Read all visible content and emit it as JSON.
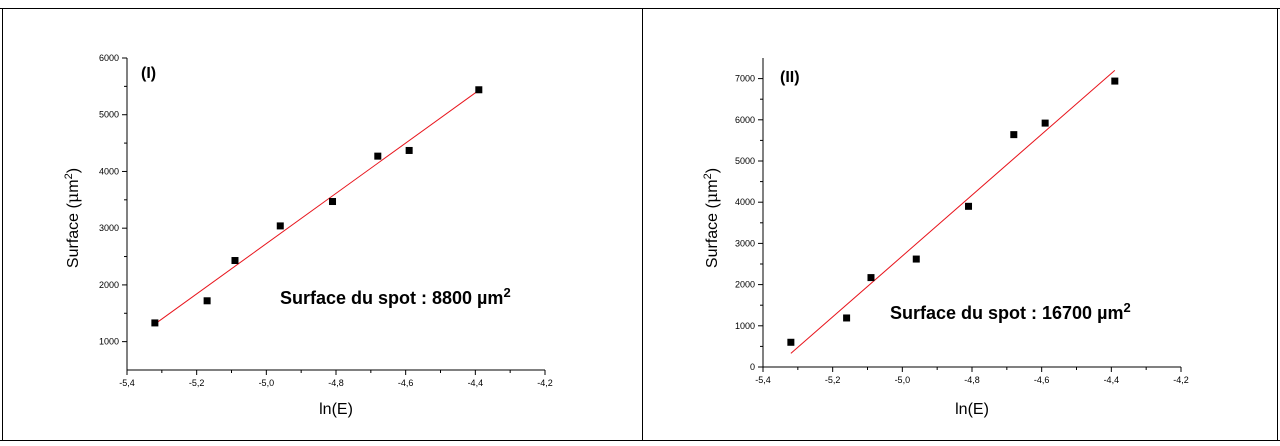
{
  "chart_data": [
    {
      "type": "scatter",
      "panel_label": "(I)",
      "xlabel": "ln(E)",
      "ylabel_main": "Surface (",
      "ylabel_mu": "μ",
      "ylabel_unit": "m",
      "ylabel_sup": "2",
      "ylabel_close": ")",
      "xlim": [
        -5.4,
        -4.2
      ],
      "ylim": [
        500,
        6000
      ],
      "x_ticks": [
        -5.4,
        -5.2,
        -5.0,
        -4.8,
        -4.6,
        -4.4,
        -4.2
      ],
      "x_tick_labels": [
        "-5,4",
        "-5,2",
        "-5,0",
        "-4,8",
        "-4,6",
        "-4,4",
        "-4,2"
      ],
      "y_ticks": [
        1000,
        2000,
        3000,
        4000,
        5000,
        6000
      ],
      "y_tick_labels": [
        "1000",
        "2000",
        "3000",
        "4000",
        "5000",
        "6000"
      ],
      "points": [
        {
          "x": -5.32,
          "y": 1330
        },
        {
          "x": -5.17,
          "y": 1720
        },
        {
          "x": -5.09,
          "y": 2430
        },
        {
          "x": -4.96,
          "y": 3040
        },
        {
          "x": -4.81,
          "y": 3470
        },
        {
          "x": -4.68,
          "y": 4270
        },
        {
          "x": -4.59,
          "y": 4370
        },
        {
          "x": -4.39,
          "y": 5440
        }
      ],
      "fit": {
        "x": [
          -5.32,
          -4.39
        ],
        "y": [
          1310,
          5430
        ]
      },
      "annotation": "Surface du spot : 8800  µm",
      "annotation_sup": "2",
      "grid": false,
      "legend": "none"
    },
    {
      "type": "scatter",
      "panel_label": "(II)",
      "xlabel": "ln(E)",
      "ylabel_main": "Surface (",
      "ylabel_mu": "μ",
      "ylabel_unit": "m",
      "ylabel_sup": "2",
      "ylabel_close": ")",
      "xlim": [
        -5.4,
        -4.2
      ],
      "ylim": [
        0,
        7500
      ],
      "x_ticks": [
        -5.4,
        -5.2,
        -5.0,
        -4.8,
        -4.6,
        -4.4,
        -4.2
      ],
      "x_tick_labels": [
        "-5,4",
        "-5,2",
        "-5,0",
        "-4,8",
        "-4,6",
        "-4,4",
        "-4,2"
      ],
      "y_ticks": [
        0,
        1000,
        2000,
        3000,
        4000,
        5000,
        6000,
        7000
      ],
      "y_tick_labels": [
        "0",
        "1000",
        "2000",
        "3000",
        "4000",
        "5000",
        "6000",
        "7000"
      ],
      "points": [
        {
          "x": -5.32,
          "y": 600
        },
        {
          "x": -5.16,
          "y": 1190
        },
        {
          "x": -5.09,
          "y": 2170
        },
        {
          "x": -4.96,
          "y": 2620
        },
        {
          "x": -4.81,
          "y": 3900
        },
        {
          "x": -4.68,
          "y": 5640
        },
        {
          "x": -4.59,
          "y": 5920
        },
        {
          "x": -4.39,
          "y": 6940
        }
      ],
      "fit": {
        "x": [
          -5.32,
          -4.39
        ],
        "y": [
          330,
          7200
        ]
      },
      "annotation": "Surface du spot : 16700 µm",
      "annotation_sup": "2",
      "grid": false,
      "legend": "none"
    }
  ]
}
